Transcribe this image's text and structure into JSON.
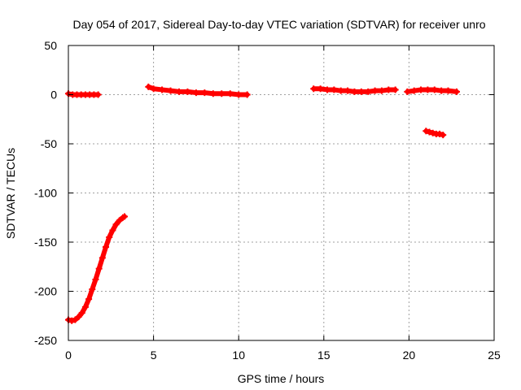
{
  "chart_data": {
    "type": "scatter",
    "title": "Day 054 of 2017, Sidereal Day-to-day VTEC variation (SDTVAR) for receiver unro",
    "xlabel": "GPS time / hours",
    "ylabel": "SDTVAR / TECUs",
    "xlim": [
      0,
      25
    ],
    "ylim": [
      -250,
      50
    ],
    "xticks": [
      0,
      5,
      10,
      15,
      20,
      25
    ],
    "yticks": [
      -250,
      -200,
      -150,
      -100,
      -50,
      0,
      50
    ],
    "xtick_labels": [
      "0",
      "5",
      "10",
      "15",
      "20",
      "25"
    ],
    "ytick_labels": [
      "-250",
      "-200",
      "-150",
      "-100",
      "-50",
      "0",
      "50"
    ],
    "grid": true,
    "marker_color": "#ff0000",
    "series": [
      {
        "name": "SDTVAR",
        "segments": [
          {
            "x": [
              0.0,
              0.25,
              0.5,
              0.75,
              1.0,
              1.25,
              1.5,
              1.75
            ],
            "y": [
              1,
              0,
              0,
              0,
              0,
              0,
              0,
              0
            ]
          },
          {
            "x": [
              0.0,
              0.2,
              0.4,
              0.6,
              0.8,
              1.0,
              1.2,
              1.4,
              1.6,
              1.8,
              2.0,
              2.2,
              2.4,
              2.6,
              2.8,
              3.0,
              3.2,
              3.3
            ],
            "y": [
              -229,
              -230,
              -229,
              -226,
              -222,
              -216,
              -208,
              -198,
              -188,
              -177,
              -166,
              -155,
              -145,
              -138,
              -132,
              -128,
              -125,
              -124
            ]
          },
          {
            "x": [
              4.7,
              5.0,
              5.5,
              6.0,
              6.5,
              7.0,
              7.5,
              8.0,
              8.5,
              9.0,
              9.5,
              10.0,
              10.5
            ],
            "y": [
              8,
              6,
              5,
              4,
              3,
              3,
              2,
              2,
              1,
              1,
              1,
              0,
              0
            ]
          },
          {
            "x": [
              14.4,
              14.8,
              15.2,
              15.6,
              16.0,
              16.4,
              16.8,
              17.2,
              17.6,
              18.0,
              18.4,
              18.8,
              19.2
            ],
            "y": [
              6,
              6,
              5,
              5,
              4,
              4,
              3,
              3,
              3,
              4,
              4,
              5,
              5
            ]
          },
          {
            "x": [
              19.9,
              20.3,
              20.7,
              21.1,
              21.5,
              21.9,
              22.3,
              22.8
            ],
            "y": [
              3,
              4,
              5,
              5,
              5,
              4,
              4,
              3
            ]
          },
          {
            "x": [
              21.0,
              21.2,
              21.4,
              21.6,
              21.8,
              22.0
            ],
            "y": [
              -37,
              -38,
              -39,
              -40,
              -40,
              -41
            ]
          }
        ]
      }
    ]
  }
}
